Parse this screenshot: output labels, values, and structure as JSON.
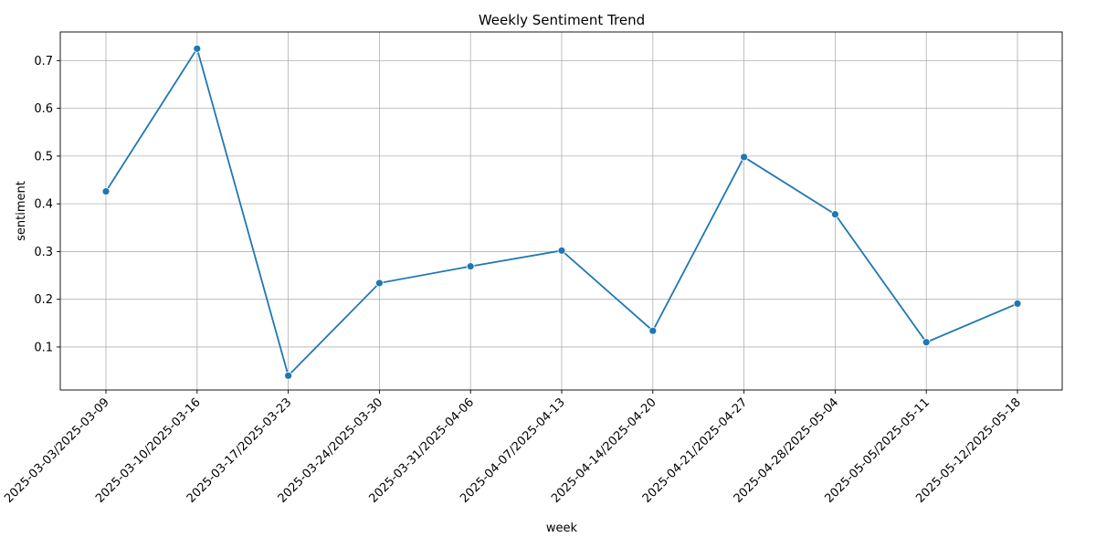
{
  "chart_data": {
    "type": "line",
    "title": "Weekly Sentiment Trend",
    "xlabel": "week",
    "ylabel": "sentiment",
    "categories": [
      "2025-03-03/2025-03-09",
      "2025-03-10/2025-03-16",
      "2025-03-17/2025-03-23",
      "2025-03-24/2025-03-30",
      "2025-03-31/2025-04-06",
      "2025-04-07/2025-04-13",
      "2025-04-14/2025-04-20",
      "2025-04-21/2025-04-27",
      "2025-04-28/2025-05-04",
      "2025-05-05/2025-05-11",
      "2025-05-12/2025-05-18"
    ],
    "series": [
      {
        "name": "sentiment",
        "values": [
          0.426,
          0.725,
          0.04,
          0.234,
          0.269,
          0.302,
          0.134,
          0.498,
          0.378,
          0.11,
          0.191
        ],
        "color": "#1f77b4"
      }
    ],
    "ylim": [
      0.01,
      0.76
    ],
    "yticks": [
      0.1,
      0.2,
      0.3,
      0.4,
      0.5,
      0.6,
      0.7
    ],
    "grid": true,
    "legend": "none"
  }
}
